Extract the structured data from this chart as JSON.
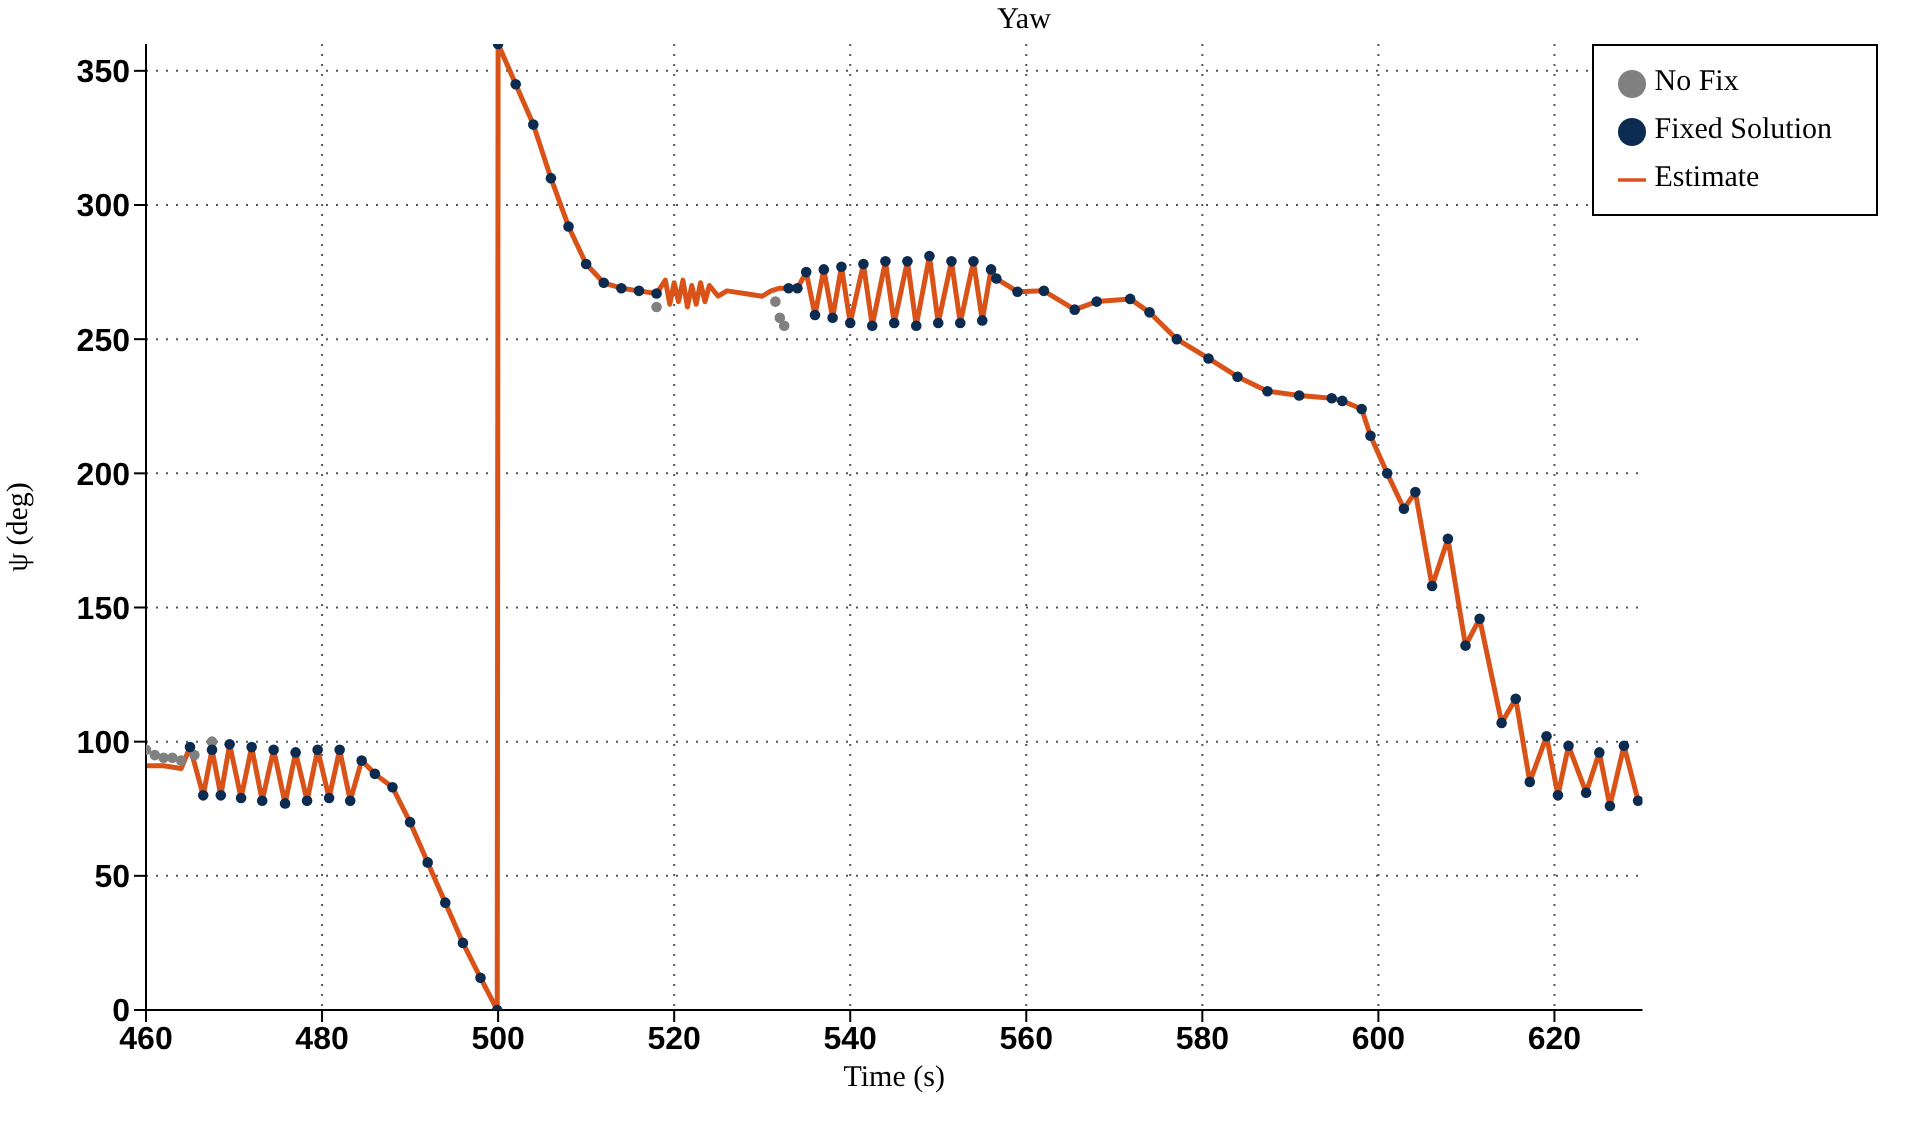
{
  "chart_data": {
    "type": "line",
    "title": "Yaw",
    "xlabel": "Time (s)",
    "ylabel": "ψ (deg)",
    "xlim": [
      460,
      630
    ],
    "xticks": [
      460,
      480,
      500,
      520,
      540,
      560,
      580,
      600,
      620
    ],
    "ylim": [
      0,
      360
    ],
    "yticks": [
      0,
      50,
      100,
      150,
      200,
      250,
      300,
      350
    ],
    "grid": true,
    "legend": "top right",
    "series": [
      {
        "name": "No Fix",
        "type": "scatter",
        "marker": "circle",
        "color": "#808080",
        "x": [
          460,
          461,
          462,
          463,
          464,
          465.5,
          467.5,
          518,
          531.5,
          532,
          532.5
        ],
        "values": [
          97,
          95,
          94,
          94,
          93,
          95,
          100,
          262,
          264,
          258,
          255
        ]
      },
      {
        "name": "Fixed Solution",
        "type": "scatter",
        "marker": "circle",
        "color": "#0c2b50",
        "x": [
          465,
          466.5,
          467.5,
          468.5,
          469.5,
          470.8,
          472,
          473.2,
          474.5,
          475.8,
          477,
          478.3,
          479.5,
          480.8,
          482,
          483.2,
          484.5,
          486,
          488,
          490,
          492,
          494,
          496,
          498,
          499.9,
          500,
          502,
          504,
          506,
          508,
          510,
          512,
          514,
          516,
          518,
          533,
          534,
          535,
          536,
          537,
          538,
          539,
          540,
          541.5,
          542.5,
          544,
          545,
          546.5,
          547.5,
          549,
          550,
          551.5,
          552.5,
          554,
          555,
          556,
          556.6,
          559,
          562,
          565.5,
          568,
          571.8,
          574,
          577.1,
          580.7,
          584,
          587.4,
          591,
          594.7,
          595.9,
          598.1,
          599.1,
          601,
          602.9,
          604.2,
          606.1,
          607.9,
          609.9,
          611.5,
          614,
          615.6,
          617.2,
          619.1,
          620.4,
          621.6,
          623.6,
          625.1,
          626.3,
          627.9,
          629.5
        ],
        "values": [
          98,
          80,
          97,
          80,
          99,
          79,
          98,
          78,
          97,
          77,
          96,
          78,
          97,
          79,
          97,
          78,
          93,
          88,
          83,
          70,
          55,
          40,
          25,
          12,
          0,
          360,
          345,
          330,
          310,
          292,
          278,
          271,
          269,
          268,
          267,
          269,
          269,
          275,
          259,
          276,
          258,
          277,
          256,
          278,
          255,
          279,
          256,
          279,
          255,
          281,
          256,
          279,
          256,
          279,
          257,
          276,
          272.6,
          267.7,
          268,
          261,
          264,
          265,
          260,
          250,
          242.8,
          236,
          230.6,
          229,
          228,
          227,
          224,
          214,
          200,
          186.8,
          193,
          158,
          175.6,
          135.8,
          145.8,
          107,
          116,
          85,
          102,
          80,
          98.5,
          81,
          96,
          76,
          98.5,
          78
        ]
      },
      {
        "name": "Estimate",
        "marker": "none",
        "line_style": "solid",
        "color": "#d95319",
        "x": [
          460,
          462,
          464,
          465,
          466.5,
          467.5,
          468.5,
          469.5,
          470.8,
          472,
          473.2,
          474.5,
          475.8,
          477,
          478.3,
          479.5,
          480.8,
          482,
          483.2,
          484.5,
          486,
          488,
          490,
          492,
          494,
          496,
          498,
          499.9,
          500,
          502,
          504,
          506,
          508,
          510,
          512,
          514,
          516,
          518,
          519,
          519.5,
          520,
          520.5,
          521,
          521.5,
          522,
          522.5,
          523,
          523.5,
          524,
          525,
          526,
          528,
          530,
          531,
          532,
          533,
          534,
          535,
          536,
          537,
          538,
          539,
          540,
          541.5,
          542.5,
          544,
          545,
          546.5,
          547.5,
          549,
          550,
          551.5,
          552.5,
          554,
          555,
          556,
          556.6,
          559,
          562,
          565.5,
          568,
          571.8,
          574,
          577.1,
          580.7,
          584,
          587.4,
          591,
          594.7,
          595.9,
          598.1,
          599.1,
          601,
          602.9,
          604.2,
          606.1,
          607.9,
          609.9,
          611.5,
          614,
          615.6,
          617.2,
          619.1,
          620.4,
          621.6,
          623.6,
          625.1,
          626.3,
          627.9,
          629.5
        ],
        "values": [
          91,
          91,
          90,
          98,
          80,
          97,
          80,
          99,
          79,
          98,
          78,
          97,
          77,
          96,
          78,
          97,
          79,
          97,
          78,
          93,
          88,
          83,
          70,
          55,
          40,
          25,
          12,
          0,
          360,
          345,
          330,
          310,
          292,
          278,
          271,
          269,
          268,
          267,
          272,
          263,
          271,
          264,
          272,
          262,
          270,
          263,
          271,
          264,
          270,
          266,
          268,
          267,
          266,
          268,
          269,
          269,
          269,
          275,
          259,
          276,
          258,
          277,
          256,
          278,
          255,
          279,
          256,
          279,
          255,
          281,
          256,
          279,
          256,
          279,
          257,
          276,
          272.6,
          267.7,
          268,
          261,
          264,
          265,
          260,
          250,
          242.8,
          236,
          230.6,
          229,
          228,
          227,
          224,
          214,
          200,
          186.8,
          193,
          158,
          175.6,
          135.8,
          145.8,
          107,
          116,
          85,
          102,
          80,
          98.5,
          81,
          96,
          76,
          98.5,
          78
        ]
      }
    ]
  }
}
